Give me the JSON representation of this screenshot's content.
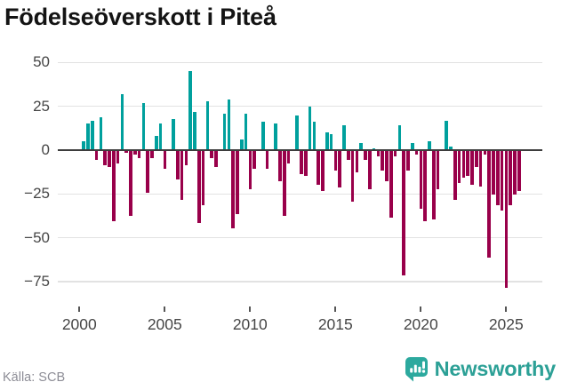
{
  "title": "Födelseöverskott i Piteå",
  "source": "Källa: SCB",
  "logo": {
    "text": "Newsworthy",
    "icon": "newsworthy-chart-bubble-icon"
  },
  "colors": {
    "positive_bar": "#00a09d",
    "negative_bar": "#99004a",
    "zero_line": "#3d3d3d",
    "gridline": "#e2e2e2",
    "axis_text": "#464646",
    "title_text": "#141414",
    "source_text": "#8d8d96",
    "logo_teal": "#2ca096"
  },
  "chart_data": {
    "type": "bar",
    "title": "Födelseöverskott i Piteå",
    "xlabel": "",
    "ylabel": "",
    "frequency": "quarterly",
    "x_start": "2000-Q1",
    "x_end": "2025-Q3",
    "grid": true,
    "legend": false,
    "ylim": [
      -85,
      55
    ],
    "y_ticks": [
      {
        "v": 50,
        "label": "50"
      },
      {
        "v": 25,
        "label": "25"
      },
      {
        "v": 0,
        "label": "0"
      },
      {
        "v": -25,
        "label": "−25"
      },
      {
        "v": -50,
        "label": "−50"
      },
      {
        "v": -75,
        "label": "−75"
      }
    ],
    "x_tick_labels": [
      "2000",
      "2005",
      "2010",
      "2015",
      "2020",
      "2025"
    ],
    "values": [
      5,
      15,
      17,
      -5,
      19,
      -8,
      -9,
      -40,
      -7,
      32,
      -1,
      -37,
      -2,
      -4,
      27,
      -24,
      -4,
      8,
      15,
      -10,
      0,
      18,
      -16,
      -28,
      -8,
      45,
      22,
      -41,
      -31,
      28,
      -4,
      -9,
      0,
      21,
      29,
      -44,
      -36,
      6,
      21,
      -22,
      -10,
      0,
      16,
      -10,
      0,
      15,
      -17,
      -37,
      -7,
      0,
      20,
      -13,
      -14,
      25,
      16,
      -19,
      -23,
      10,
      9,
      -11,
      -21,
      14,
      -5,
      -29,
      -12,
      4,
      -5,
      -22,
      1,
      -3,
      -11,
      -17,
      -38,
      -3,
      14,
      -71,
      -11,
      4,
      -2,
      -33,
      -40,
      5,
      -39,
      -22,
      0,
      17,
      2,
      -28,
      -18,
      -15,
      -14,
      -19,
      -9,
      -20,
      -2,
      -61,
      -25,
      -31,
      -34,
      -78,
      -31,
      -25,
      -23
    ]
  }
}
